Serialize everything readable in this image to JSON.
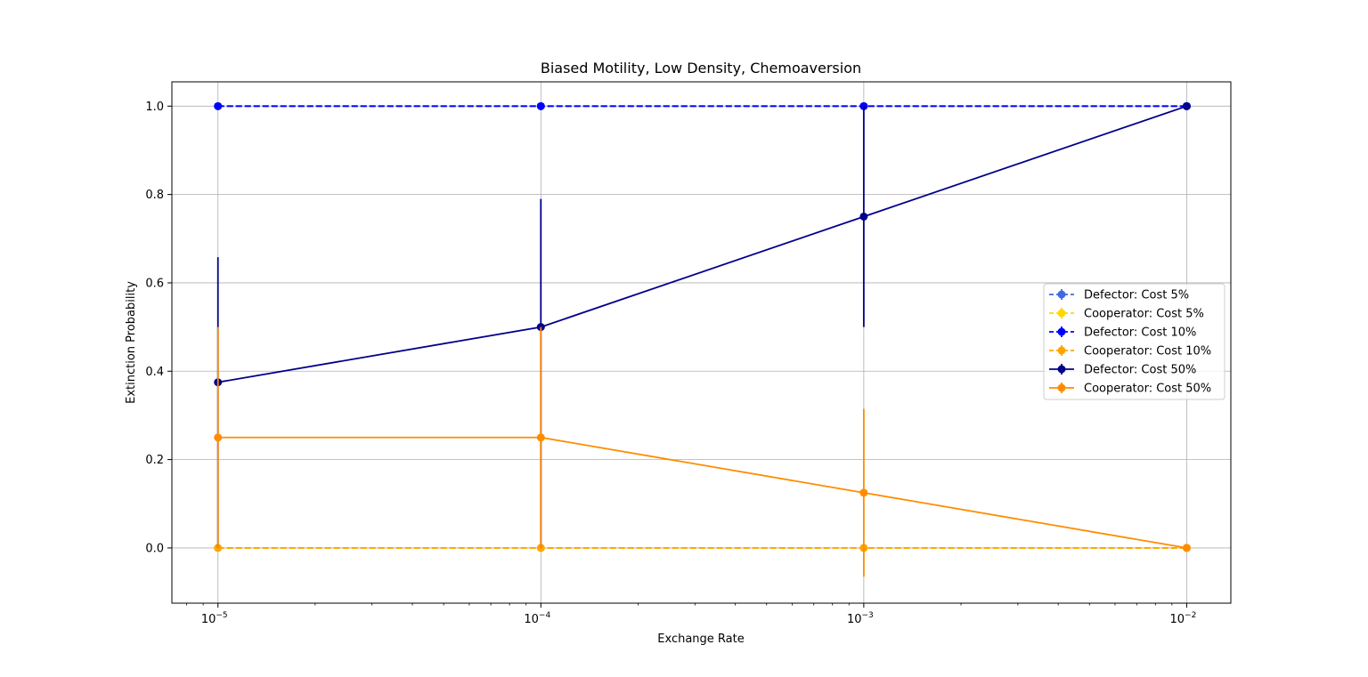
{
  "chart_data": {
    "type": "line",
    "title": "Biased Motility, Low Density, Chemoaversion",
    "xlabel": "Exchange Rate",
    "ylabel": "Extinction Probability",
    "xscale": "log",
    "x": [
      1e-05,
      0.0001,
      0.001,
      0.01
    ],
    "x_tick_labels": [
      {
        "base": "10",
        "exp": "−5"
      },
      {
        "base": "10",
        "exp": "−4"
      },
      {
        "base": "10",
        "exp": "−3"
      },
      {
        "base": "10",
        "exp": "−2"
      }
    ],
    "xlim": [
      7.2e-06,
      0.0137
    ],
    "ylim": [
      -0.125,
      1.055
    ],
    "y_ticks": [
      0.0,
      0.2,
      0.4,
      0.6,
      0.8,
      1.0
    ],
    "y_tick_labels": [
      "0.0",
      "0.2",
      "0.4",
      "0.6",
      "0.8",
      "1.0"
    ],
    "grid": true,
    "legend_position": "center-right",
    "series": [
      {
        "name": "Defector: Cost 5%",
        "color": "#4169e1",
        "dash": "dashed",
        "values": [
          1.0,
          1.0,
          1.0,
          1.0
        ],
        "err_low": [
          0,
          0,
          0,
          0
        ],
        "err_high": [
          0,
          0,
          0,
          0
        ]
      },
      {
        "name": "Cooperator: Cost 5%",
        "color": "#ffd700",
        "dash": "dashed",
        "values": [
          0.0,
          0.0,
          0.0,
          0.0
        ],
        "err_low": [
          0,
          0,
          0,
          0
        ],
        "err_high": [
          0,
          0,
          0,
          0
        ]
      },
      {
        "name": "Defector: Cost 10%",
        "color": "#0000ff",
        "dash": "dashed",
        "values": [
          1.0,
          1.0,
          1.0,
          1.0
        ],
        "err_low": [
          0,
          0,
          0,
          0
        ],
        "err_high": [
          0,
          0,
          0,
          0
        ]
      },
      {
        "name": "Cooperator: Cost 10%",
        "color": "#ffa500",
        "dash": "dashed",
        "values": [
          0.0,
          0.0,
          0.0,
          0.0
        ],
        "err_low": [
          0,
          0,
          0,
          0
        ],
        "err_high": [
          0,
          0,
          0,
          0
        ]
      },
      {
        "name": "Defector: Cost 50%",
        "color": "#00008b",
        "dash": "solid",
        "values": [
          0.375,
          0.5,
          0.75,
          1.0
        ],
        "err_low": [
          0.375,
          0.5,
          0.25,
          0
        ],
        "err_high": [
          0.283,
          0.29,
          0.25,
          0
        ]
      },
      {
        "name": "Cooperator: Cost 50%",
        "color": "#ff8c00",
        "dash": "solid",
        "values": [
          0.25,
          0.25,
          0.125,
          0.0
        ],
        "err_low": [
          0.25,
          0.25,
          0.19,
          0
        ],
        "err_high": [
          0.25,
          0.25,
          0.19,
          0
        ]
      }
    ]
  }
}
